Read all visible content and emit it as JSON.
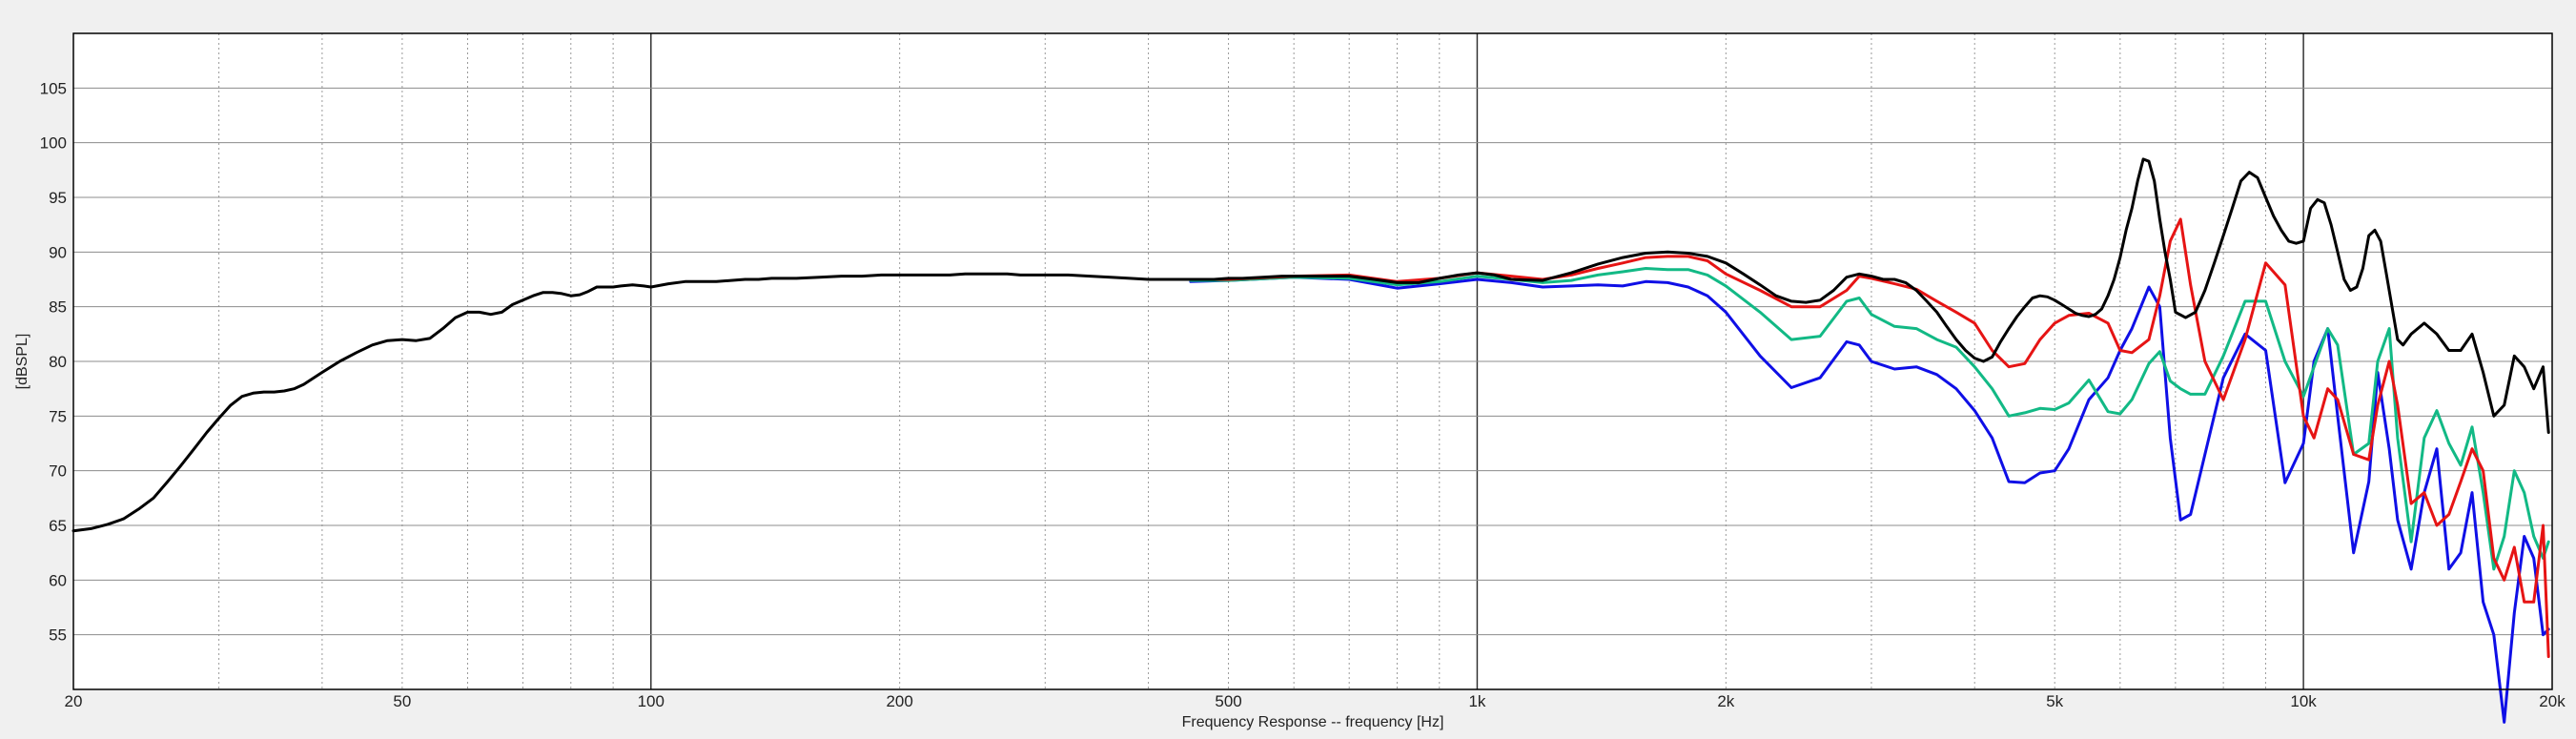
{
  "chart_data": {
    "type": "line",
    "title": "",
    "xlabel": "Frequency Response -- frequency [Hz]",
    "ylabel": "[dBSPL]",
    "x_scale": "log",
    "xlim": [
      20,
      20000
    ],
    "ylim": [
      50,
      110
    ],
    "grid": true,
    "x_major_ticks": [
      {
        "value": 20,
        "label": "20"
      },
      {
        "value": 50,
        "label": "50"
      },
      {
        "value": 100,
        "label": "100"
      },
      {
        "value": 200,
        "label": "200"
      },
      {
        "value": 500,
        "label": "500"
      },
      {
        "value": 1000,
        "label": "1k"
      },
      {
        "value": 2000,
        "label": "2k"
      },
      {
        "value": 5000,
        "label": "5k"
      },
      {
        "value": 10000,
        "label": "10k"
      },
      {
        "value": 20000,
        "label": "20k"
      }
    ],
    "y_ticks": [
      {
        "value": 55,
        "label": "55"
      },
      {
        "value": 60,
        "label": "60"
      },
      {
        "value": 65,
        "label": "65"
      },
      {
        "value": 70,
        "label": "70"
      },
      {
        "value": 75,
        "label": "75"
      },
      {
        "value": 80,
        "label": "80"
      },
      {
        "value": 85,
        "label": "85"
      },
      {
        "value": 90,
        "label": "90"
      },
      {
        "value": 95,
        "label": "95"
      },
      {
        "value": 100,
        "label": "100"
      },
      {
        "value": 105,
        "label": "105"
      }
    ],
    "series": [
      {
        "color": "#0f0fe6",
        "x": [
          450,
          500,
          600,
          700,
          800,
          900,
          1000,
          1100,
          1200,
          1300,
          1400,
          1500,
          1600,
          1700,
          1800,
          1900,
          2000,
          2200,
          2400,
          2600,
          2800,
          2900,
          3000,
          3200,
          3400,
          3600,
          3800,
          4000,
          4200,
          4400,
          4600,
          4800,
          5000,
          5200,
          5500,
          5800,
          6000,
          6200,
          6500,
          6700,
          6900,
          7100,
          7300,
          7600,
          8000,
          8500,
          9000,
          9500,
          10000,
          10300,
          10700,
          11000,
          11500,
          12000,
          12300,
          12700,
          13000,
          13500,
          14000,
          14500,
          15000,
          15500,
          16000,
          16500,
          17000,
          17500,
          18000,
          18500,
          19000,
          19500,
          19800
        ],
        "values": [
          87.3,
          87.4,
          87.7,
          87.5,
          86.7,
          87.1,
          87.5,
          87.2,
          86.8,
          86.9,
          87.0,
          86.9,
          87.3,
          87.2,
          86.8,
          86.0,
          84.5,
          80.5,
          77.6,
          78.5,
          81.8,
          81.5,
          80.0,
          79.3,
          79.5,
          78.8,
          77.5,
          75.5,
          73.0,
          69.0,
          68.9,
          69.8,
          70.0,
          72.0,
          76.5,
          78.5,
          81.0,
          83.0,
          86.8,
          85.0,
          73.0,
          65.5,
          66.0,
          71.5,
          78.5,
          82.5,
          81.0,
          68.9,
          72.5,
          80.0,
          83.0,
          75.0,
          62.5,
          69.0,
          79.0,
          72.0,
          65.5,
          61.0,
          68.0,
          72.0,
          61.0,
          62.5,
          68.0,
          58.0,
          55.0,
          47.0,
          57.0,
          64.0,
          62.0,
          55.0,
          55.5
        ]
      },
      {
        "color": "#12b985",
        "x": [
          450,
          500,
          600,
          700,
          800,
          900,
          1000,
          1100,
          1200,
          1300,
          1400,
          1500,
          1600,
          1700,
          1800,
          1900,
          2000,
          2200,
          2400,
          2600,
          2800,
          2900,
          3000,
          3200,
          3400,
          3600,
          3800,
          4000,
          4200,
          4400,
          4600,
          4800,
          5000,
          5200,
          5500,
          5800,
          6000,
          6200,
          6500,
          6700,
          6900,
          7100,
          7300,
          7600,
          8000,
          8500,
          9000,
          9500,
          10000,
          10300,
          10700,
          11000,
          11500,
          12000,
          12300,
          12700,
          13000,
          13500,
          14000,
          14500,
          15000,
          15500,
          16000,
          16500,
          17000,
          17500,
          18000,
          18500,
          19000,
          19500,
          19800
        ],
        "values": [
          87.4,
          87.4,
          87.7,
          87.6,
          87.0,
          87.3,
          87.8,
          87.5,
          87.2,
          87.4,
          87.9,
          88.2,
          88.5,
          88.4,
          88.4,
          87.9,
          86.9,
          84.5,
          82.0,
          82.3,
          85.5,
          85.8,
          84.3,
          83.2,
          83.0,
          82.0,
          81.3,
          79.5,
          77.5,
          75.0,
          75.3,
          75.7,
          75.6,
          76.2,
          78.3,
          75.4,
          75.2,
          76.5,
          79.8,
          80.9,
          78.2,
          77.5,
          77.0,
          77.0,
          80.5,
          85.5,
          85.5,
          80.0,
          76.8,
          79.5,
          83.0,
          81.5,
          71.5,
          72.5,
          80.0,
          83.0,
          73.0,
          63.5,
          73.0,
          75.5,
          72.5,
          70.5,
          74.0,
          68.0,
          61.0,
          64.0,
          70.0,
          68.0,
          64.0,
          62.0,
          63.5
        ]
      },
      {
        "color": "#e61414",
        "x": [
          450,
          500,
          600,
          700,
          800,
          900,
          1000,
          1100,
          1200,
          1300,
          1400,
          1500,
          1600,
          1700,
          1800,
          1900,
          2000,
          2200,
          2400,
          2600,
          2800,
          2900,
          3000,
          3200,
          3400,
          3600,
          3800,
          4000,
          4200,
          4400,
          4600,
          4800,
          5000,
          5200,
          5500,
          5800,
          6000,
          6200,
          6500,
          6700,
          6900,
          7100,
          7300,
          7600,
          8000,
          8500,
          9000,
          9500,
          10000,
          10300,
          10700,
          11000,
          11500,
          12000,
          12300,
          12700,
          13000,
          13500,
          14000,
          14500,
          15000,
          15500,
          16000,
          16500,
          17000,
          17500,
          18000,
          18500,
          19000,
          19500,
          19800
        ],
        "values": [
          87.5,
          87.5,
          87.8,
          87.9,
          87.3,
          87.6,
          88.1,
          87.8,
          87.5,
          87.9,
          88.5,
          89.0,
          89.5,
          89.6,
          89.6,
          89.2,
          88.0,
          86.5,
          85.0,
          85.0,
          86.5,
          87.8,
          87.6,
          87.1,
          86.6,
          85.5,
          84.5,
          83.5,
          81.0,
          79.5,
          79.8,
          82.0,
          83.5,
          84.2,
          84.4,
          83.5,
          81.0,
          80.8,
          82.0,
          86.0,
          91.0,
          93.0,
          87.0,
          80.0,
          76.5,
          82.0,
          89.0,
          87.0,
          75.0,
          73.0,
          77.5,
          76.5,
          71.5,
          71.0,
          76.0,
          80.0,
          76.0,
          67.0,
          68.0,
          65.0,
          66.0,
          69.0,
          72.0,
          70.0,
          62.0,
          60.0,
          63.0,
          58.0,
          58.0,
          65.0,
          53.0
        ]
      },
      {
        "color": "#000000",
        "x": [
          20,
          21,
          22,
          23,
          24,
          25,
          26,
          27,
          28,
          29,
          30,
          31,
          32,
          33,
          34,
          35,
          36,
          37,
          38,
          40,
          42,
          44,
          46,
          48,
          50,
          52,
          54,
          56,
          58,
          60,
          62,
          64,
          66,
          68,
          70,
          72,
          74,
          76,
          78,
          80,
          82,
          84,
          86,
          88,
          90,
          92,
          95,
          98,
          100,
          105,
          110,
          115,
          120,
          125,
          130,
          135,
          140,
          145,
          150,
          160,
          170,
          180,
          190,
          200,
          210,
          220,
          230,
          240,
          250,
          260,
          270,
          280,
          290,
          300,
          320,
          340,
          360,
          380,
          400,
          420,
          450,
          480,
          500,
          520,
          550,
          580,
          600,
          650,
          700,
          750,
          800,
          850,
          900,
          950,
          1000,
          1050,
          1100,
          1200,
          1300,
          1400,
          1500,
          1600,
          1700,
          1800,
          1900,
          2000,
          2100,
          2200,
          2300,
          2400,
          2500,
          2600,
          2700,
          2800,
          2900,
          3000,
          3100,
          3200,
          3300,
          3400,
          3500,
          3600,
          3700,
          3800,
          3900,
          4000,
          4100,
          4200,
          4300,
          4400,
          4500,
          4600,
          4700,
          4800,
          4900,
          5000,
          5100,
          5200,
          5300,
          5400,
          5500,
          5600,
          5700,
          5800,
          5900,
          6000,
          6100,
          6200,
          6300,
          6400,
          6500,
          6600,
          6700,
          6800,
          6900,
          7000,
          7200,
          7400,
          7600,
          7800,
          8000,
          8200,
          8400,
          8600,
          8800,
          9000,
          9200,
          9400,
          9600,
          9800,
          10000,
          10200,
          10400,
          10600,
          10800,
          11000,
          11200,
          11400,
          11600,
          11800,
          12000,
          12200,
          12400,
          12600,
          12800,
          13000,
          13200,
          13500,
          14000,
          14500,
          15000,
          15500,
          16000,
          16500,
          17000,
          17500,
          18000,
          18500,
          19000,
          19500,
          19800
        ],
        "values": [
          64.5,
          64.7,
          65.1,
          65.6,
          66.5,
          67.5,
          69.0,
          70.5,
          72.0,
          73.5,
          74.8,
          76.0,
          76.8,
          77.1,
          77.2,
          77.2,
          77.3,
          77.5,
          77.9,
          79.0,
          80.0,
          80.8,
          81.5,
          81.9,
          82.0,
          81.9,
          82.1,
          83.0,
          84.0,
          84.5,
          84.5,
          84.3,
          84.5,
          85.2,
          85.6,
          86.0,
          86.3,
          86.3,
          86.2,
          86.0,
          86.1,
          86.4,
          86.8,
          86.8,
          86.8,
          86.9,
          87.0,
          86.9,
          86.8,
          87.1,
          87.3,
          87.3,
          87.3,
          87.4,
          87.5,
          87.5,
          87.6,
          87.6,
          87.6,
          87.7,
          87.8,
          87.8,
          87.9,
          87.9,
          87.9,
          87.9,
          87.9,
          88.0,
          88.0,
          88.0,
          88.0,
          87.9,
          87.9,
          87.9,
          87.9,
          87.8,
          87.7,
          87.6,
          87.5,
          87.5,
          87.5,
          87.5,
          87.6,
          87.6,
          87.7,
          87.8,
          87.8,
          87.8,
          87.8,
          87.5,
          87.2,
          87.2,
          87.6,
          87.9,
          88.1,
          87.9,
          87.5,
          87.4,
          88.1,
          88.9,
          89.5,
          89.9,
          90.0,
          89.9,
          89.6,
          89.0,
          88.0,
          87.0,
          86.0,
          85.5,
          85.4,
          85.6,
          86.5,
          87.7,
          88.0,
          87.8,
          87.5,
          87.5,
          87.2,
          86.5,
          85.5,
          84.5,
          83.2,
          82.0,
          81.0,
          80.3,
          80.0,
          80.4,
          81.8,
          83.0,
          84.1,
          85.0,
          85.8,
          86.0,
          85.9,
          85.6,
          85.2,
          84.8,
          84.4,
          84.2,
          84.1,
          84.3,
          84.8,
          86.0,
          87.5,
          89.5,
          92.0,
          94.0,
          96.5,
          98.5,
          98.3,
          96.5,
          93.0,
          90.0,
          87.5,
          84.5,
          84.0,
          84.5,
          86.5,
          89.0,
          91.5,
          94.0,
          96.5,
          97.3,
          96.8,
          95.0,
          93.3,
          92.0,
          91.0,
          90.8,
          91.0,
          94.0,
          94.8,
          94.5,
          92.5,
          90.0,
          87.5,
          86.5,
          86.8,
          88.5,
          91.5,
          92.0,
          91.0,
          88.0,
          85.0,
          82.0,
          81.5,
          82.5,
          83.5,
          82.5,
          81.0,
          81.0,
          82.5,
          79.0,
          75.0,
          76.0,
          80.5,
          79.5,
          77.5,
          79.5,
          73.5
        ]
      }
    ]
  }
}
